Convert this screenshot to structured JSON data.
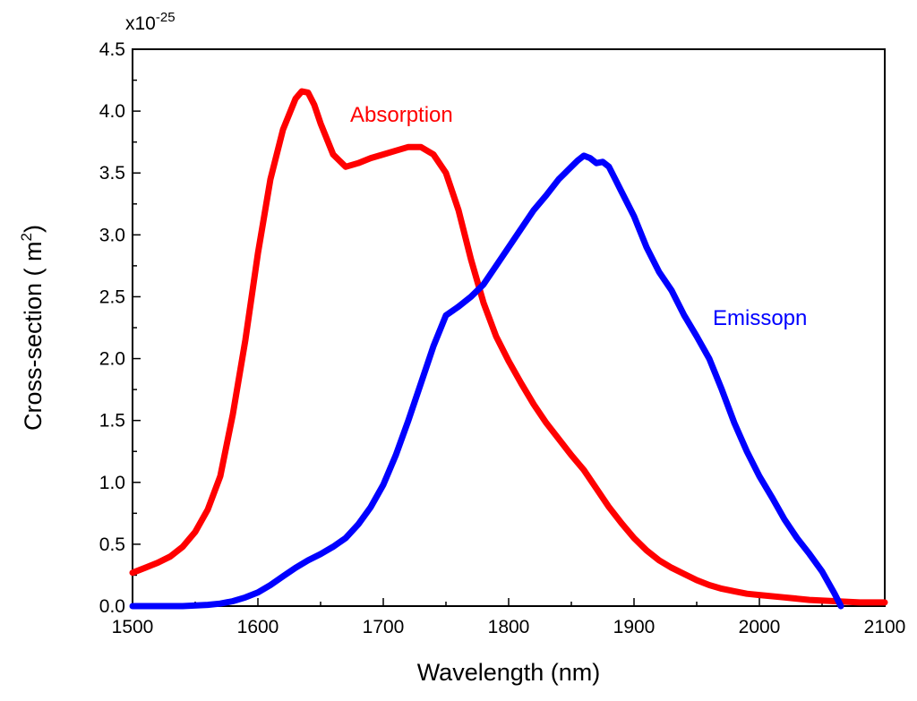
{
  "chart_data": {
    "type": "line",
    "title": "",
    "xlabel": "Wavelength (nm)",
    "ylabel_prefix": "Cross-section ( m",
    "ylabel_sup": "2",
    "ylabel_suffix": ")",
    "y_multiplier_base": "x10",
    "y_multiplier_exp": "-25",
    "xlim": [
      1500,
      2100
    ],
    "ylim": [
      0,
      4.5
    ],
    "xticks": [
      1500,
      1600,
      1700,
      1800,
      1900,
      2000,
      2100
    ],
    "xtick_labels": [
      "1500",
      "1600",
      "1700",
      "1800",
      "1900",
      "2000",
      "2100"
    ],
    "yticks": [
      0,
      0.5,
      1.0,
      1.5,
      2.0,
      2.5,
      3.0,
      3.5,
      4.0,
      4.5
    ],
    "ytick_labels": [
      "0.0",
      "0.5",
      "1.0",
      "1.5",
      "2.0",
      "2.5",
      "3.0",
      "3.5",
      "4.0",
      "4.5"
    ],
    "grid": false,
    "legend": "none",
    "annotations": [
      {
        "text": "Absorption",
        "series": "Absorption",
        "color": "#ff0000"
      },
      {
        "text": "Emissopn",
        "series": "Emissopn",
        "color": "#0000ff"
      }
    ],
    "series": [
      {
        "name": "Absorption",
        "color": "#ff0000",
        "x": [
          1500,
          1510,
          1520,
          1530,
          1540,
          1550,
          1560,
          1570,
          1580,
          1590,
          1600,
          1610,
          1620,
          1630,
          1635,
          1640,
          1645,
          1650,
          1660,
          1670,
          1680,
          1690,
          1700,
          1710,
          1720,
          1730,
          1740,
          1750,
          1760,
          1770,
          1780,
          1790,
          1800,
          1810,
          1820,
          1830,
          1840,
          1850,
          1860,
          1870,
          1880,
          1890,
          1900,
          1910,
          1920,
          1930,
          1940,
          1950,
          1960,
          1970,
          1980,
          1990,
          2000,
          2020,
          2040,
          2060,
          2080,
          2100
        ],
        "y": [
          0.27,
          0.31,
          0.35,
          0.4,
          0.48,
          0.6,
          0.78,
          1.05,
          1.55,
          2.15,
          2.85,
          3.45,
          3.85,
          4.1,
          4.16,
          4.15,
          4.05,
          3.9,
          3.65,
          3.55,
          3.58,
          3.62,
          3.65,
          3.68,
          3.71,
          3.71,
          3.65,
          3.5,
          3.2,
          2.8,
          2.45,
          2.18,
          1.98,
          1.8,
          1.63,
          1.48,
          1.35,
          1.22,
          1.1,
          0.95,
          0.8,
          0.67,
          0.55,
          0.45,
          0.37,
          0.31,
          0.26,
          0.21,
          0.17,
          0.14,
          0.12,
          0.1,
          0.09,
          0.07,
          0.05,
          0.04,
          0.03,
          0.03
        ]
      },
      {
        "name": "Emissopn",
        "color": "#0000ff",
        "x": [
          1500,
          1520,
          1540,
          1560,
          1570,
          1580,
          1590,
          1600,
          1610,
          1620,
          1630,
          1640,
          1650,
          1660,
          1670,
          1680,
          1690,
          1700,
          1710,
          1720,
          1730,
          1740,
          1750,
          1760,
          1770,
          1780,
          1790,
          1800,
          1810,
          1820,
          1830,
          1840,
          1845,
          1850,
          1855,
          1860,
          1865,
          1870,
          1875,
          1880,
          1885,
          1890,
          1900,
          1910,
          1920,
          1930,
          1940,
          1950,
          1960,
          1970,
          1980,
          1990,
          2000,
          2010,
          2020,
          2030,
          2040,
          2050,
          2060,
          2065
        ],
        "y": [
          0.0,
          0.0,
          0.0,
          0.01,
          0.02,
          0.04,
          0.07,
          0.11,
          0.17,
          0.24,
          0.31,
          0.37,
          0.42,
          0.48,
          0.55,
          0.66,
          0.8,
          0.98,
          1.22,
          1.5,
          1.8,
          2.1,
          2.35,
          2.42,
          2.5,
          2.6,
          2.75,
          2.9,
          3.05,
          3.2,
          3.32,
          3.45,
          3.5,
          3.55,
          3.6,
          3.64,
          3.62,
          3.58,
          3.59,
          3.55,
          3.45,
          3.35,
          3.15,
          2.9,
          2.7,
          2.55,
          2.35,
          2.18,
          2.0,
          1.75,
          1.48,
          1.25,
          1.05,
          0.88,
          0.7,
          0.55,
          0.42,
          0.28,
          0.1,
          0.0
        ]
      }
    ]
  }
}
